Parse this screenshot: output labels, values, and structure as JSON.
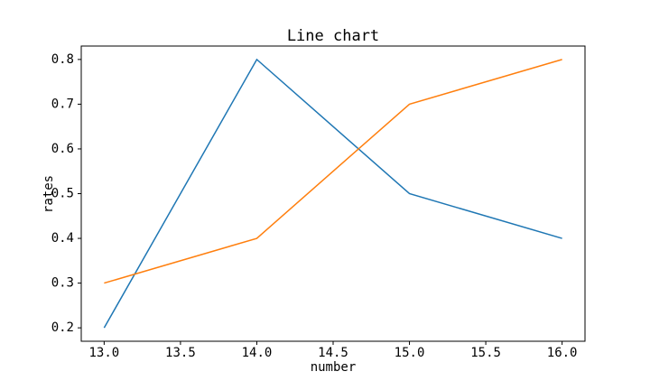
{
  "chart_data": {
    "type": "line",
    "title": "Line chart",
    "x_label": "number",
    "y_label": "rates",
    "x": [
      13,
      14,
      15,
      16
    ],
    "series": [
      {
        "color": "#1f77b4",
        "values": [
          0.2,
          0.8,
          0.5,
          0.4
        ]
      },
      {
        "color": "#ff7f0e",
        "values": [
          0.3,
          0.4,
          0.7,
          0.8
        ]
      }
    ],
    "xlim": [
      12.85,
      16.15
    ],
    "xticks": [
      {
        "value": 13,
        "label": "13.0"
      },
      13.5,
      {
        "value": 14,
        "label": "14.0"
      },
      14.5,
      {
        "value": 15,
        "label": "15.0"
      },
      15.5,
      {
        "value": 16,
        "label": "16.0"
      }
    ],
    "ylim": [
      0.17,
      0.83
    ],
    "yticks": [
      0.2,
      0.3,
      0.4,
      0.5,
      0.6,
      0.7,
      0.8
    ],
    "grid": false
  }
}
